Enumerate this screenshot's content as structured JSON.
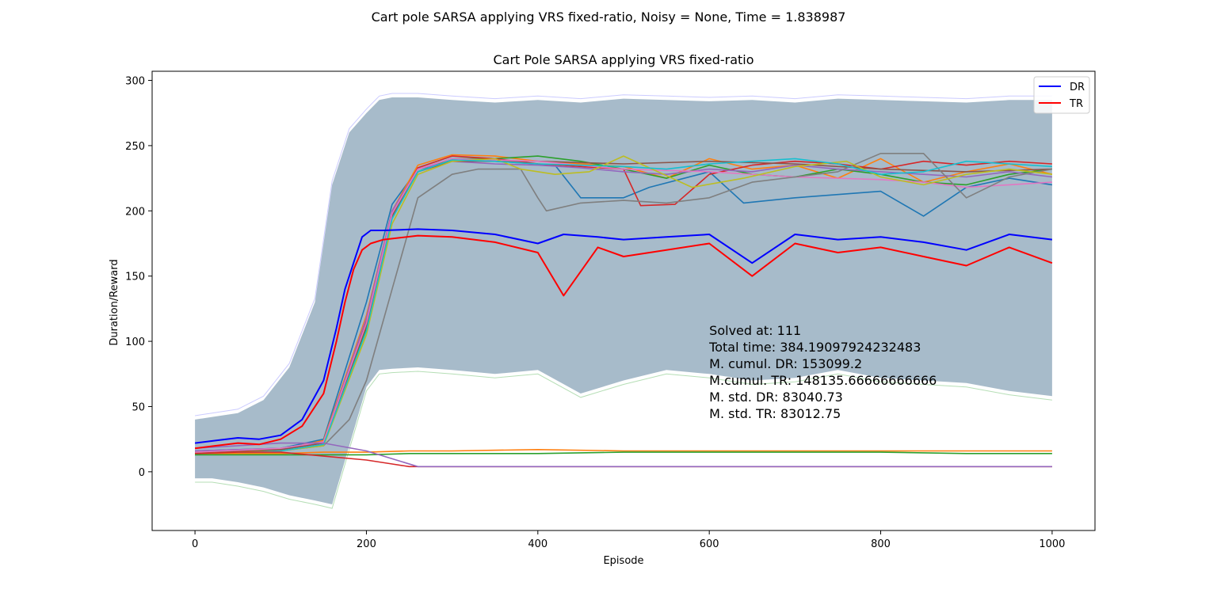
{
  "suptitle": "Cart pole SARSA applying VRS fixed-ratio, Noisy = None, Time = 1.838987",
  "chart_data": {
    "type": "line",
    "title": "Cart Pole SARSA applying VRS fixed-ratio",
    "xlabel": "Episode",
    "ylabel": "Duration/Reward",
    "xlim": [
      -50,
      1050
    ],
    "ylim": [
      -45,
      307
    ],
    "xticks": [
      0,
      200,
      400,
      600,
      800,
      1000
    ],
    "yticks": [
      0,
      50,
      100,
      150,
      200,
      250,
      300
    ],
    "grid": false,
    "legend_position": "top-right",
    "legend": [
      {
        "name": "DR",
        "color": "#0000ff"
      },
      {
        "name": "TR",
        "color": "#ff0000"
      }
    ],
    "annotations": [
      "Solved at: 111",
      "Total time: 384.19097924232483",
      "M. cumul. DR: 153099.2",
      "M.cumul. TR: 148135.66666666666",
      "M. std. DR: 83040.73",
      "M. std. TR: 83012.75"
    ],
    "std_band": {
      "color": "#4f7895",
      "x": [
        0,
        20,
        50,
        80,
        110,
        140,
        160,
        180,
        200,
        215,
        230,
        260,
        300,
        350,
        400,
        450,
        500,
        550,
        600,
        650,
        700,
        750,
        800,
        850,
        900,
        950,
        1000
      ],
      "upper": [
        40,
        42,
        45,
        55,
        80,
        130,
        220,
        260,
        275,
        285,
        287,
        287,
        285,
        283,
        285,
        283,
        286,
        285,
        284,
        285,
        283,
        286,
        285,
        284,
        283,
        285,
        285
      ],
      "lower": [
        -5,
        -5,
        -8,
        -12,
        -18,
        -22,
        -25,
        20,
        65,
        78,
        79,
        80,
        78,
        75,
        78,
        60,
        70,
        78,
        75,
        70,
        72,
        78,
        72,
        70,
        68,
        62,
        58
      ]
    },
    "series": [
      {
        "name": "DR",
        "color": "#0000ff",
        "x": [
          0,
          25,
          50,
          75,
          100,
          125,
          150,
          165,
          175,
          185,
          195,
          205,
          220,
          260,
          300,
          350,
          400,
          430,
          470,
          500,
          550,
          600,
          650,
          700,
          750,
          800,
          850,
          900,
          950,
          1000
        ],
        "y": [
          22,
          24,
          26,
          25,
          28,
          40,
          70,
          110,
          140,
          160,
          180,
          185,
          185,
          186,
          185,
          182,
          175,
          182,
          180,
          178,
          180,
          182,
          160,
          182,
          178,
          180,
          176,
          170,
          182,
          178
        ]
      },
      {
        "name": "TR",
        "color": "#ff0000",
        "x": [
          0,
          25,
          50,
          75,
          100,
          125,
          150,
          165,
          175,
          185,
          195,
          205,
          220,
          260,
          300,
          350,
          400,
          430,
          470,
          500,
          550,
          600,
          650,
          700,
          750,
          800,
          850,
          900,
          950,
          1000
        ],
        "y": [
          18,
          20,
          22,
          21,
          25,
          35,
          60,
          100,
          130,
          155,
          170,
          175,
          178,
          181,
          180,
          176,
          168,
          135,
          172,
          165,
          170,
          175,
          150,
          175,
          168,
          172,
          165,
          158,
          172,
          160
        ]
      },
      {
        "color": "#1f77b4",
        "x": [
          0,
          100,
          150,
          200,
          230,
          260,
          300,
          350,
          420,
          450,
          500,
          530,
          600,
          640,
          700,
          800,
          850,
          900,
          950,
          1000
        ],
        "y": [
          16,
          18,
          25,
          130,
          205,
          232,
          240,
          238,
          235,
          210,
          210,
          218,
          230,
          206,
          210,
          215,
          196,
          218,
          225,
          220
        ]
      },
      {
        "color": "#ff7f0e",
        "x": [
          0,
          100,
          150,
          200,
          230,
          260,
          300,
          350,
          400,
          500,
          550,
          600,
          650,
          700,
          750,
          800,
          850,
          900,
          950,
          1000
        ],
        "y": [
          15,
          17,
          24,
          120,
          200,
          235,
          243,
          242,
          238,
          234,
          225,
          240,
          232,
          235,
          225,
          240,
          222,
          230,
          236,
          228
        ]
      },
      {
        "color": "#2ca02c",
        "x": [
          0,
          100,
          150,
          200,
          230,
          260,
          300,
          350,
          400,
          450,
          500,
          550,
          600,
          650,
          700,
          750,
          800,
          850,
          900,
          950,
          1000
        ],
        "y": [
          15,
          18,
          22,
          110,
          195,
          230,
          240,
          240,
          242,
          238,
          232,
          225,
          235,
          228,
          226,
          232,
          228,
          222,
          220,
          228,
          232
        ]
      },
      {
        "color": "#d62728",
        "x": [
          0,
          100,
          150,
          200,
          230,
          260,
          300,
          350,
          400,
          500,
          520,
          560,
          600,
          650,
          700,
          750,
          800,
          850,
          900,
          950,
          1000
        ],
        "y": [
          14,
          17,
          22,
          115,
          198,
          233,
          242,
          240,
          236,
          232,
          204,
          205,
          228,
          235,
          238,
          236,
          232,
          238,
          235,
          238,
          236
        ]
      },
      {
        "color": "#9467bd",
        "x": [
          0,
          100,
          150,
          200,
          230,
          260,
          300,
          350,
          400,
          450,
          500,
          550,
          600,
          650,
          700,
          750,
          800,
          850,
          900,
          950,
          1000
        ],
        "y": [
          16,
          18,
          23,
          118,
          200,
          232,
          238,
          236,
          235,
          233,
          230,
          228,
          232,
          230,
          235,
          232,
          230,
          228,
          226,
          230,
          226
        ]
      },
      {
        "color": "#8c564b",
        "x": [
          0,
          100,
          150,
          200,
          230,
          260,
          300,
          400,
          500,
          600,
          700,
          800,
          900,
          1000
        ],
        "y": [
          15,
          17,
          22,
          112,
          196,
          230,
          238,
          238,
          236,
          238,
          236,
          232,
          230,
          232
        ]
      },
      {
        "color": "#e377c2",
        "x": [
          0,
          100,
          150,
          200,
          230,
          260,
          300,
          400,
          500,
          600,
          700,
          800,
          850,
          900,
          950,
          1000
        ],
        "y": [
          15,
          18,
          23,
          114,
          198,
          232,
          240,
          238,
          232,
          230,
          226,
          224,
          222,
          218,
          220,
          222
        ]
      },
      {
        "color": "#7f7f7f",
        "x": [
          0,
          100,
          150,
          180,
          200,
          230,
          260,
          300,
          330,
          380,
          400,
          410,
          450,
          500,
          550,
          600,
          650,
          700,
          750,
          800,
          850,
          900,
          950,
          1000
        ],
        "y": [
          14,
          16,
          20,
          40,
          70,
          140,
          210,
          228,
          232,
          232,
          210,
          200,
          206,
          208,
          206,
          210,
          222,
          226,
          230,
          244,
          244,
          210,
          226,
          232
        ]
      },
      {
        "color": "#bcbd22",
        "x": [
          0,
          100,
          150,
          200,
          230,
          260,
          300,
          350,
          380,
          420,
          460,
          500,
          580,
          640,
          700,
          760,
          800,
          850,
          900,
          950,
          1000
        ],
        "y": [
          14,
          16,
          20,
          105,
          190,
          228,
          238,
          240,
          232,
          228,
          230,
          242,
          218,
          225,
          234,
          238,
          226,
          220,
          228,
          232,
          228
        ]
      },
      {
        "color": "#17becf",
        "x": [
          0,
          100,
          150,
          200,
          230,
          260,
          300,
          350,
          400,
          450,
          500,
          550,
          600,
          650,
          700,
          750,
          800,
          850,
          900,
          950,
          1000
        ],
        "y": [
          13,
          16,
          21,
          108,
          194,
          230,
          239,
          238,
          236,
          235,
          234,
          232,
          236,
          238,
          240,
          236,
          228,
          230,
          238,
          236,
          234
        ]
      },
      {
        "color": "#ff7f0e",
        "x": [
          0,
          100,
          150,
          200,
          250,
          300,
          400,
          500,
          600,
          700,
          800,
          900,
          1000
        ],
        "y": [
          14,
          14,
          15,
          15,
          16,
          16,
          17,
          16,
          16,
          16,
          16,
          16,
          16
        ]
      },
      {
        "color": "#2ca02c",
        "x": [
          0,
          100,
          150,
          200,
          250,
          300,
          400,
          500,
          600,
          700,
          800,
          900,
          1000
        ],
        "y": [
          13,
          13,
          13,
          13,
          14,
          14,
          14,
          15,
          15,
          15,
          15,
          14,
          14
        ]
      },
      {
        "color": "#d62728",
        "x": [
          0,
          50,
          100,
          150,
          200,
          230,
          250,
          270,
          300,
          400,
          500,
          600,
          700,
          800,
          900,
          1000
        ],
        "y": [
          14,
          15,
          15,
          12,
          9,
          6,
          4,
          4,
          4,
          4,
          4,
          4,
          4,
          4,
          4,
          4
        ]
      },
      {
        "color": "#9467bd",
        "x": [
          0,
          50,
          100,
          150,
          200,
          230,
          260,
          300,
          400,
          500,
          600,
          700,
          800,
          900,
          1000
        ],
        "y": [
          18,
          20,
          22,
          22,
          16,
          10,
          4,
          4,
          4,
          4,
          4,
          4,
          4,
          4,
          4
        ]
      }
    ]
  }
}
